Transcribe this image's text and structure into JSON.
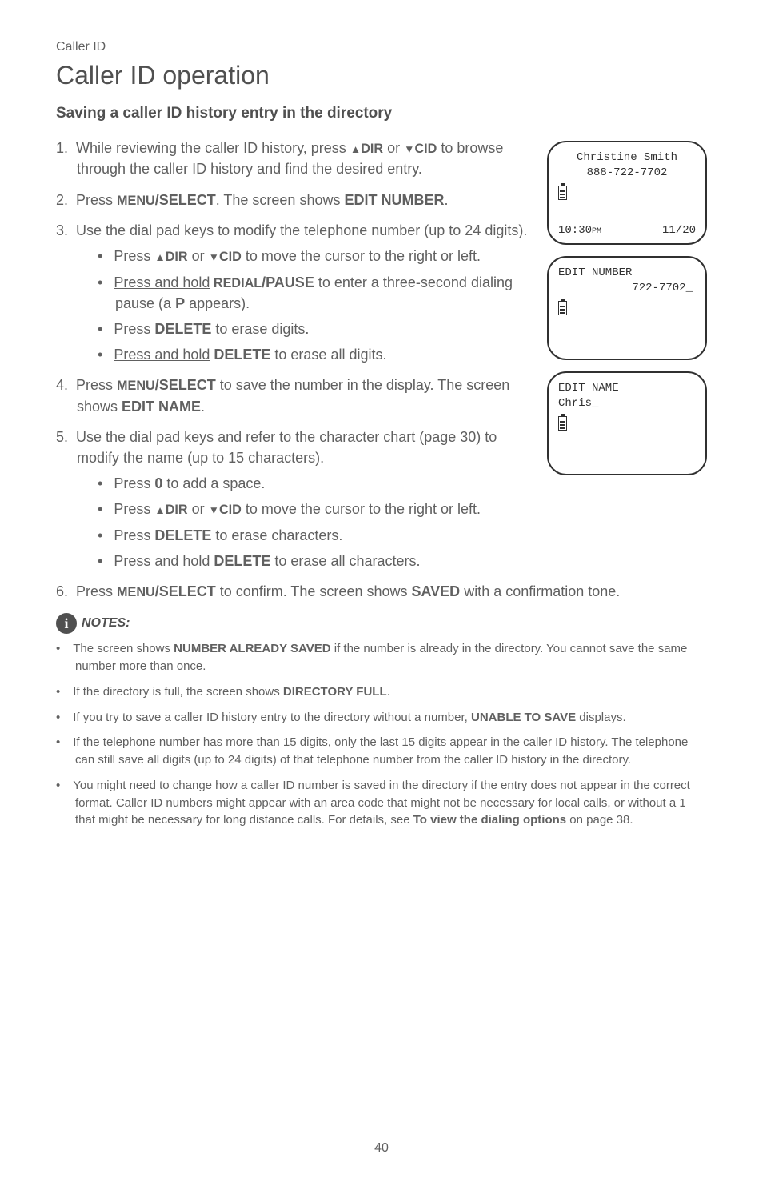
{
  "breadcrumb": "Caller ID",
  "page_title": "Caller ID operation",
  "section_heading": "Saving a caller ID history entry in the directory",
  "steps": {
    "s1a": "While reviewing the caller ID history, press ",
    "s1_dir": "DIR",
    "s1b": " or ",
    "s1_cid": "CID",
    "s1c": " to browse through the caller ID history and find the desired entry.",
    "s2a": "Press ",
    "s2_menu": "MENU",
    "s2_select": "/SELECT",
    "s2b": ". The screen shows ",
    "s2_edit": "EDIT NUMBER",
    "s2c": ".",
    "s3": "Use the dial pad keys to modify the telephone number (up to 24 digits).",
    "s3_1a": "Press ",
    "s3_1_dir": "DIR",
    "s3_1b": " or ",
    "s3_1_cid": "CID",
    "s3_1c": " to move the cursor to the right or left.",
    "s3_2a": "Press and hold",
    "s3_2_redial": " REDIAL",
    "s3_2_pause": "/PAUSE",
    "s3_2b": " to enter a three-second dialing pause (a ",
    "s3_2_p": "P",
    "s3_2c": " appears).",
    "s3_3a": "Press ",
    "s3_3_del": "DELETE",
    "s3_3b": " to erase digits.",
    "s3_4a": "Press and hold",
    "s3_4_del": " DELETE",
    "s3_4b": " to erase all digits.",
    "s4a": "Press ",
    "s4_menu": "MENU",
    "s4_select": "/SELECT",
    "s4b": " to save the number in the display. The screen shows ",
    "s4_edit": "EDIT NAME",
    "s4c": ".",
    "s5": "Use the dial pad keys and refer to the character chart (page 30) to modify the name (up to 15 characters).",
    "s5_1a": "Press ",
    "s5_1_0": "0",
    "s5_1b": " to add a space.",
    "s5_2a": "Press ",
    "s5_2_dir": "DIR",
    "s5_2b": " or ",
    "s5_2_cid": "CID",
    "s5_2c": " to move the cursor to the right or left.",
    "s5_3a": "Press ",
    "s5_3_del": "DELETE",
    "s5_3b": " to erase characters.",
    "s5_4a": "Press and hold",
    "s5_4_del": " DELETE",
    "s5_4b": " to erase all characters.",
    "s6a": "Press ",
    "s6_menu": "MENU",
    "s6_select": "/SELECT",
    "s6b": " to confirm. The screen shows ",
    "s6_saved": "SAVED",
    "s6c": " with a confirmation tone."
  },
  "notes_label": "NOTES:",
  "notes": {
    "n1a": "The screen shows ",
    "n1_b": "NUMBER ALREADY SAVED",
    "n1b": " if the number is already in the directory. You cannot save the same number more than once.",
    "n2a": "If the directory is full, the screen shows ",
    "n2_b": "DIRECTORY FULL",
    "n2b": ".",
    "n3a": "If you try to save a caller ID history entry to the directory without a number, ",
    "n3_b": "UNABLE TO SAVE",
    "n3b": " displays.",
    "n4": "If the telephone number has more than 15 digits, only the last 15 digits appear in the caller ID history. The telephone can still save all digits (up to 24 digits) of that telephone number from the caller ID history in the directory.",
    "n5a": "You might need to change how a caller ID number is saved in the directory if the entry does not appear in the correct format. Caller ID numbers might appear with an area code that might not be necessary for local calls, or without a 1 that might be necessary for long distance calls. For details, see ",
    "n5_b": "To view the dialing options",
    "n5b": " on page 38."
  },
  "screens": {
    "s1": {
      "name": "Christine Smith",
      "number": "888-722-7702",
      "time": "10:30",
      "ampm": "PM",
      "date": "11/20"
    },
    "s2": {
      "title": "EDIT NUMBER",
      "value": "722-7702_"
    },
    "s3": {
      "title": "EDIT NAME",
      "value": "Chris_"
    }
  },
  "page_number": "40",
  "colors": {
    "text": "#606060",
    "heading": "#505050",
    "border": "#303030",
    "bg": "#ffffff"
  }
}
